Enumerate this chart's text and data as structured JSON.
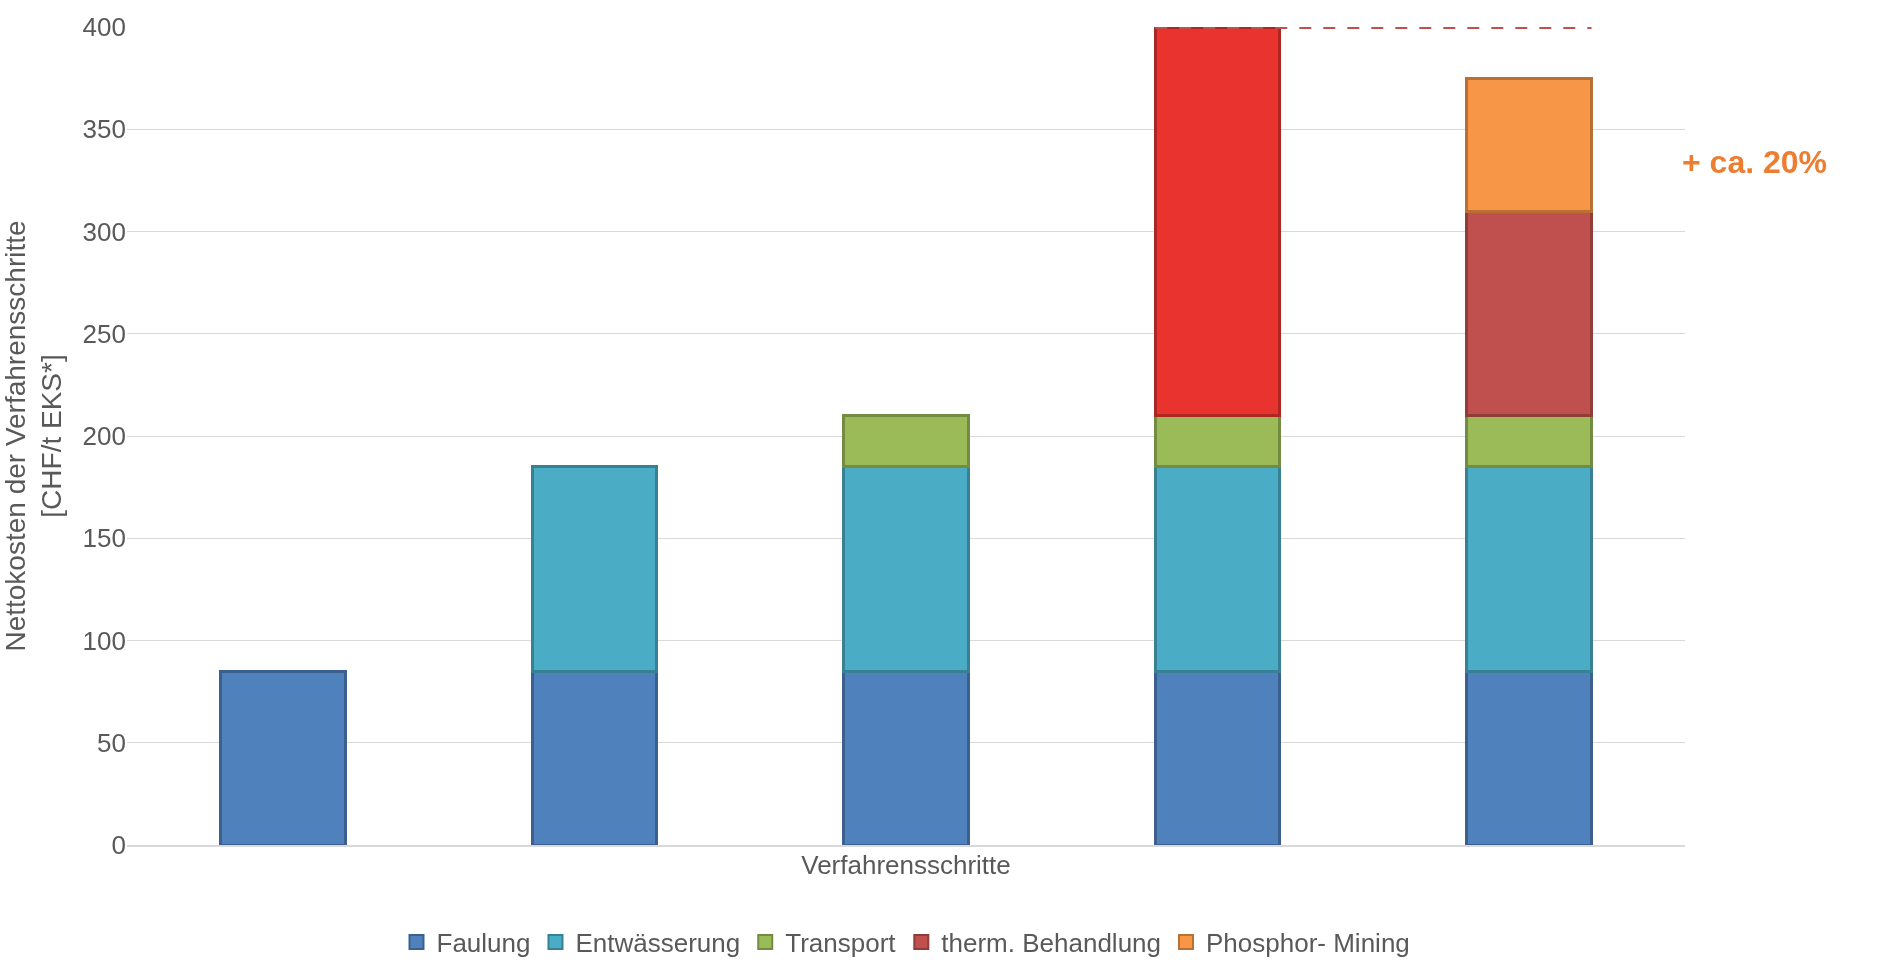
{
  "chart_data": {
    "type": "bar",
    "stacked": true,
    "xlabel": "Verfahrensschritte",
    "ylabel": "Nettokosten der Verfahrensschritte\n[CHF/t EKS*]",
    "categories": [
      null,
      null,
      null,
      null,
      null
    ],
    "series": [
      {
        "name": "Faulung",
        "color": "#4f81bd",
        "values": [
          85,
          85,
          85,
          85,
          85
        ]
      },
      {
        "name": "Entwässerung",
        "color": "#4bacc6",
        "values": [
          null,
          100,
          100,
          100,
          100
        ]
      },
      {
        "name": "Transport",
        "color": "#9bbb59",
        "values": [
          null,
          null,
          25,
          25,
          25
        ]
      },
      {
        "name": "therm. Behandlung",
        "color": "#c0504d",
        "colors": [
          "#c0504d",
          "#c0504d",
          "#c0504d",
          "#e8332f",
          "#c0504d"
        ],
        "values": [
          null,
          null,
          null,
          190,
          100
        ]
      },
      {
        "name": "Phosphor- Mining",
        "color": "#f79646",
        "values": [
          null,
          null,
          null,
          null,
          65
        ]
      }
    ],
    "ylim": [
      0,
      400
    ],
    "yticks": [
      0,
      50,
      100,
      150,
      200,
      250,
      300,
      350,
      400
    ],
    "grid": "y",
    "legend": "bottom",
    "annotations": [
      "+ ca. 20%"
    ],
    "ref_lines": [
      {
        "axis": "y",
        "value": 400,
        "color": "#c0504d",
        "line_style": "dashed"
      }
    ]
  }
}
